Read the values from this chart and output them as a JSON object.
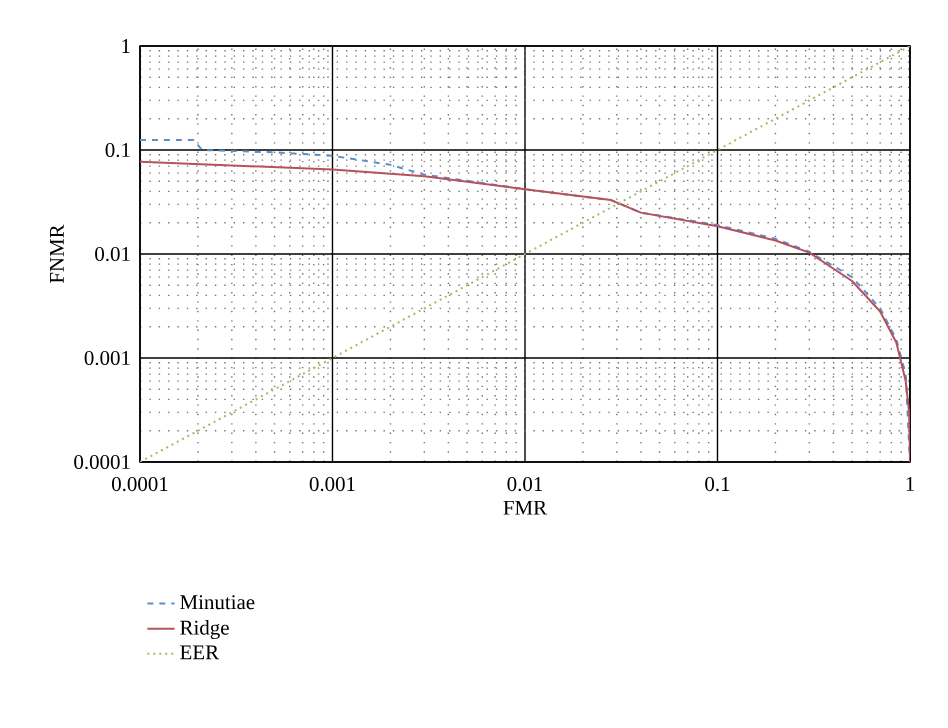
{
  "chart_data": {
    "type": "line",
    "xlabel": "FMR",
    "ylabel": "FNMR",
    "log": "xy",
    "grid": true,
    "legend": "bottom left",
    "xlim": [
      0.0001,
      1
    ],
    "ylim": [
      0.0001,
      1
    ],
    "xticks": [
      0.0001,
      0.001,
      0.01,
      0.1,
      1
    ],
    "yticks": [
      0.0001,
      0.001,
      0.01,
      0.1,
      1
    ],
    "series": [
      {
        "name": "Minutiae",
        "color": "#5b8fc9",
        "line_style": "dashed",
        "x": [
          0.0001,
          0.00019,
          0.00021,
          0.0005,
          0.001,
          0.002,
          0.003,
          0.01,
          0.028,
          0.04,
          0.1,
          0.2,
          0.3,
          0.5,
          0.7,
          0.85,
          0.95,
          1
        ],
        "values": [
          0.125,
          0.125,
          0.1,
          0.095,
          0.088,
          0.072,
          0.058,
          0.042,
          0.033,
          0.025,
          0.019,
          0.014,
          0.0105,
          0.006,
          0.003,
          0.0015,
          0.0007,
          0.0001
        ]
      },
      {
        "name": "Ridge",
        "color": "#b5525c",
        "line_style": "solid",
        "x": [
          0.0001,
          0.001,
          0.003,
          0.01,
          0.028,
          0.04,
          0.1,
          0.2,
          0.3,
          0.5,
          0.7,
          0.85,
          0.95,
          0.99,
          1
        ],
        "values": [
          0.077,
          0.065,
          0.056,
          0.042,
          0.033,
          0.025,
          0.0185,
          0.0135,
          0.0103,
          0.0055,
          0.0028,
          0.0014,
          0.0006,
          0.0003,
          0.0001
        ]
      },
      {
        "name": "EER",
        "color": "#a8b860",
        "line_style": "dotted",
        "x": [
          0.0001,
          1
        ],
        "values": [
          0.0001,
          1
        ]
      }
    ]
  }
}
